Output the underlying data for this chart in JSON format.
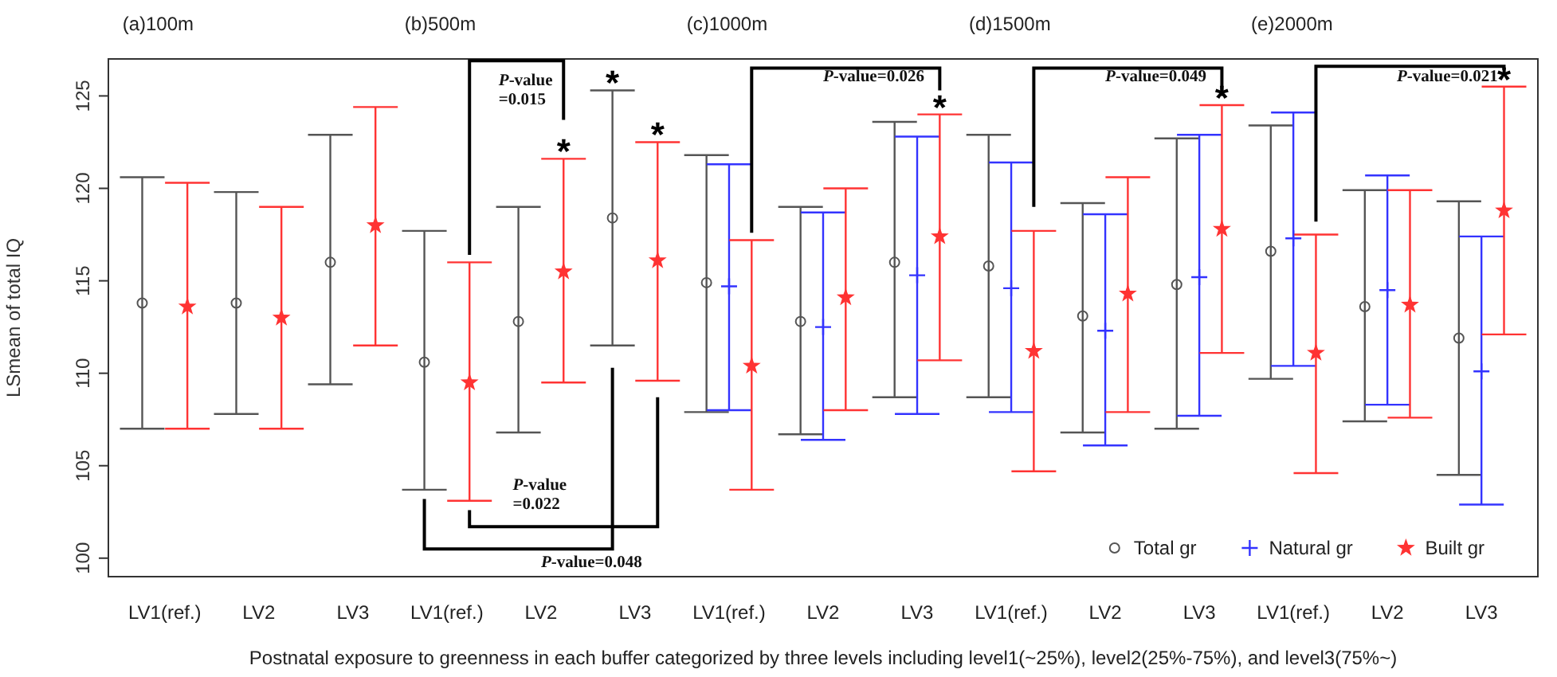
{
  "chart_data": {
    "type": "scatter",
    "categories": [
      "LV1(ref.)",
      "LV2",
      "LV3",
      "LV1(ref.)",
      "LV2",
      "LV3",
      "LV1(ref.)",
      "LV2",
      "LV3",
      "LV1(ref.)",
      "LV2",
      "LV3",
      "LV1(ref.)",
      "LV2",
      "LV3"
    ],
    "ylabel": "LSmean of total IQ",
    "xlabel": "Postnatal exposure to greenness in each buffer categorized by three levels including level1(~25%), level2(25%-75%), and level3(75%~)",
    "ylim": [
      99,
      127
    ],
    "yticks": [
      100,
      105,
      110,
      115,
      120,
      125
    ],
    "legend": "bottom right",
    "grid": false,
    "series": [
      {
        "name": "Total gr",
        "color": "#555555",
        "marker": "circle",
        "values": [
          113.8,
          113.8,
          116.0,
          110.6,
          112.8,
          118.4,
          114.9,
          112.8,
          116.0,
          115.8,
          113.1,
          114.8,
          116.6,
          113.6,
          111.9
        ],
        "errors": [
          [
            107.0,
            120.6
          ],
          [
            107.8,
            119.8
          ],
          [
            109.4,
            122.9
          ],
          [
            103.7,
            117.7
          ],
          [
            106.8,
            119.0
          ],
          [
            111.5,
            125.3
          ],
          [
            107.9,
            121.8
          ],
          [
            106.7,
            119.0
          ],
          [
            108.7,
            123.6
          ],
          [
            108.7,
            122.9
          ],
          [
            106.8,
            119.2
          ],
          [
            107.0,
            122.7
          ],
          [
            109.7,
            123.4
          ],
          [
            107.4,
            119.9
          ],
          [
            104.5,
            119.3
          ]
        ]
      },
      {
        "name": "Natural gr",
        "color": "#3333ff",
        "marker": "cross",
        "values": [
          null,
          null,
          null,
          null,
          null,
          null,
          114.7,
          112.5,
          115.3,
          114.6,
          112.3,
          115.2,
          117.3,
          114.5,
          110.1
        ],
        "errors": [
          null,
          null,
          null,
          null,
          null,
          null,
          [
            108.0,
            121.3
          ],
          [
            106.4,
            118.7
          ],
          [
            107.8,
            122.8
          ],
          [
            107.9,
            121.4
          ],
          [
            106.1,
            118.6
          ],
          [
            107.7,
            122.9
          ],
          [
            110.4,
            124.1
          ],
          [
            108.3,
            120.7
          ],
          [
            102.9,
            117.4
          ]
        ]
      },
      {
        "name": "Built gr",
        "color": "#ff3333",
        "marker": "star",
        "values": [
          113.6,
          113.0,
          118.0,
          109.5,
          115.5,
          116.1,
          110.4,
          114.1,
          117.4,
          111.2,
          114.3,
          117.8,
          111.1,
          113.7,
          118.8
        ],
        "errors": [
          [
            107.0,
            120.3
          ],
          [
            107.0,
            119.0
          ],
          [
            111.5,
            124.4
          ],
          [
            103.1,
            116.0
          ],
          [
            109.5,
            121.6
          ],
          [
            109.6,
            122.5
          ],
          [
            103.7,
            117.2
          ],
          [
            108.0,
            120.0
          ],
          [
            110.7,
            124.0
          ],
          [
            104.7,
            117.7
          ],
          [
            107.9,
            120.6
          ],
          [
            111.1,
            124.5
          ],
          [
            104.6,
            117.5
          ],
          [
            107.6,
            119.9
          ],
          [
            112.1,
            125.5
          ]
        ]
      }
    ],
    "annotations": [
      "(a)100m",
      "(b)500m",
      "(c)1000m",
      "(d)1500m",
      "(e)2000m",
      "P-value=0.015",
      "P-value=0.022",
      "P-value=0.048",
      "P-value=0.026",
      "P-value=0.049",
      "P-value=0.021",
      "*",
      "*",
      "*",
      "*",
      "*",
      "*"
    ]
  }
}
